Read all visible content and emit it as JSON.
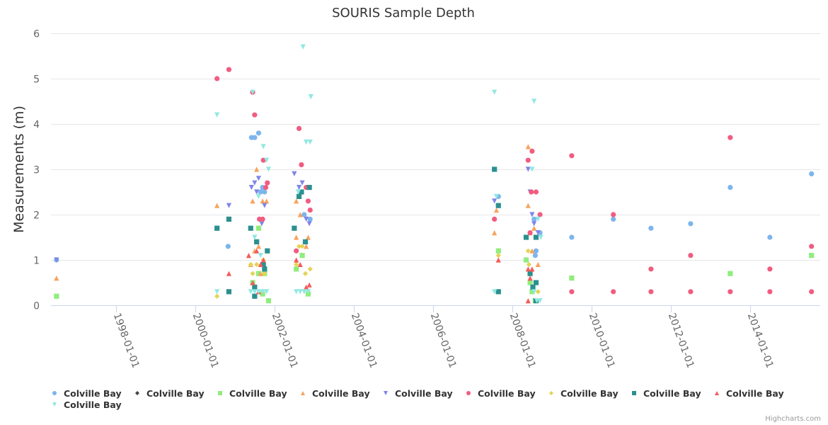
{
  "chart_data": {
    "type": "scatter",
    "title": "SOURIS Sample Depth",
    "xlabel": "",
    "ylabel": "Measurements (m)",
    "x_type": "datetime (decimal year)",
    "xlim": [
      1996.36,
      2015.77
    ],
    "ylim": [
      0,
      6
    ],
    "yticks": [
      0,
      1,
      2,
      3,
      4,
      5,
      6
    ],
    "xticks": [
      {
        "value": 1998,
        "label": "1998-01-01"
      },
      {
        "value": 2000,
        "label": "2000-01-01"
      },
      {
        "value": 2002,
        "label": "2002-01-01"
      },
      {
        "value": 2004,
        "label": "2004-01-01"
      },
      {
        "value": 2006,
        "label": "2006-01-01"
      },
      {
        "value": 2008,
        "label": "2008-01-01"
      },
      {
        "value": 2010,
        "label": "2010-01-01"
      },
      {
        "value": 2012,
        "label": "2012-01-01"
      },
      {
        "value": 2014,
        "label": "2014-01-01"
      }
    ],
    "grid": true,
    "legend_position": "bottom",
    "series": [
      {
        "name": "Colville Bay",
        "color": "#7cb5ec",
        "marker": "circle",
        "points": [
          [
            1996.5,
            1.0
          ],
          [
            2000.83,
            1.3
          ],
          [
            2001.42,
            3.7
          ],
          [
            2001.5,
            3.7
          ],
          [
            2001.6,
            3.8
          ],
          [
            2001.65,
            2.5
          ],
          [
            2001.75,
            2.5
          ],
          [
            2001.7,
            2.6
          ],
          [
            2002.75,
            2.0
          ],
          [
            2002.9,
            1.9
          ],
          [
            2007.65,
            2.4
          ],
          [
            2008.55,
            1.9
          ],
          [
            2008.6,
            1.2
          ],
          [
            2008.58,
            1.1
          ],
          [
            2008.7,
            1.6
          ],
          [
            2009.5,
            1.5
          ],
          [
            2010.55,
            1.9
          ],
          [
            2011.5,
            1.7
          ],
          [
            2012.5,
            1.8
          ],
          [
            2013.5,
            2.6
          ],
          [
            2014.5,
            1.5
          ],
          [
            2015.55,
            2.9
          ]
        ]
      },
      {
        "name": "Colville Bay",
        "color": "#434348",
        "marker": "diamond",
        "points": []
      },
      {
        "name": "Colville Bay",
        "color": "#90ed7d",
        "marker": "square",
        "points": [
          [
            1996.5,
            0.2
          ],
          [
            2001.45,
            0.5
          ],
          [
            2001.6,
            1.7
          ],
          [
            2001.6,
            0.7
          ],
          [
            2001.75,
            0.7
          ],
          [
            2001.7,
            0.25
          ],
          [
            2001.85,
            0.1
          ],
          [
            2002.55,
            0.8
          ],
          [
            2002.7,
            1.1
          ],
          [
            2002.85,
            0.25
          ],
          [
            2007.65,
            1.2
          ],
          [
            2008.35,
            1.0
          ],
          [
            2008.45,
            0.5
          ],
          [
            2008.5,
            0.3
          ],
          [
            2008.58,
            0.1
          ],
          [
            2009.5,
            0.6
          ],
          [
            2013.5,
            0.7
          ],
          [
            2015.55,
            1.1
          ]
        ]
      },
      {
        "name": "Colville Bay",
        "color": "#f7a35c",
        "marker": "triangle",
        "points": [
          [
            1996.5,
            0.6
          ],
          [
            2000.55,
            2.2
          ],
          [
            2001.45,
            2.3
          ],
          [
            2001.55,
            3.0
          ],
          [
            2001.7,
            2.3
          ],
          [
            2001.8,
            2.3
          ],
          [
            2001.5,
            1.2
          ],
          [
            2001.6,
            1.3
          ],
          [
            2001.4,
            0.9
          ],
          [
            2001.65,
            0.7
          ],
          [
            2002.55,
            2.3
          ],
          [
            2002.65,
            2.0
          ],
          [
            2002.55,
            1.5
          ],
          [
            2002.85,
            1.5
          ],
          [
            2002.8,
            1.3
          ],
          [
            2007.55,
            1.6
          ],
          [
            2007.6,
            2.1
          ],
          [
            2008.4,
            3.5
          ],
          [
            2008.4,
            2.2
          ],
          [
            2008.45,
            1.6
          ],
          [
            2008.5,
            1.2
          ],
          [
            2008.55,
            1.7
          ],
          [
            2008.65,
            0.9
          ]
        ]
      },
      {
        "name": "Colville Bay",
        "color": "#8085e9",
        "marker": "triangle-down",
        "points": [
          [
            1996.5,
            1.0
          ],
          [
            2000.85,
            2.2
          ],
          [
            2001.42,
            2.6
          ],
          [
            2001.5,
            2.7
          ],
          [
            2001.55,
            2.5
          ],
          [
            2001.6,
            2.8
          ],
          [
            2001.75,
            2.2
          ],
          [
            2001.68,
            1.8
          ],
          [
            2002.5,
            2.9
          ],
          [
            2002.62,
            2.6
          ],
          [
            2002.7,
            2.7
          ],
          [
            2002.8,
            1.9
          ],
          [
            2002.88,
            1.8
          ],
          [
            2007.55,
            2.3
          ],
          [
            2008.4,
            3.0
          ],
          [
            2008.45,
            2.5
          ],
          [
            2008.5,
            2.0
          ],
          [
            2008.55,
            1.8
          ],
          [
            2008.65,
            1.6
          ]
        ]
      },
      {
        "name": "Colville Bay",
        "color": "#f15c80",
        "marker": "circle",
        "points": [
          [
            2000.55,
            5.0
          ],
          [
            2000.85,
            5.2
          ],
          [
            2001.45,
            4.7
          ],
          [
            2001.5,
            4.2
          ],
          [
            2001.72,
            3.2
          ],
          [
            2001.82,
            2.7
          ],
          [
            2001.78,
            2.6
          ],
          [
            2001.62,
            1.9
          ],
          [
            2001.7,
            1.9
          ],
          [
            2002.62,
            3.9
          ],
          [
            2002.68,
            3.1
          ],
          [
            2002.8,
            2.6
          ],
          [
            2002.85,
            2.3
          ],
          [
            2002.9,
            2.1
          ],
          [
            2002.55,
            1.2
          ],
          [
            2007.55,
            1.9
          ],
          [
            2008.4,
            3.2
          ],
          [
            2008.5,
            3.4
          ],
          [
            2008.6,
            2.5
          ],
          [
            2008.48,
            2.5
          ],
          [
            2008.7,
            2.0
          ],
          [
            2008.45,
            1.6
          ],
          [
            2009.5,
            3.3
          ],
          [
            2009.5,
            0.3
          ],
          [
            2010.55,
            2.0
          ],
          [
            2010.55,
            0.3
          ],
          [
            2011.5,
            0.8
          ],
          [
            2011.5,
            0.3
          ],
          [
            2012.5,
            1.1
          ],
          [
            2012.5,
            0.3
          ],
          [
            2013.5,
            3.7
          ],
          [
            2013.5,
            0.3
          ],
          [
            2014.5,
            0.8
          ],
          [
            2014.5,
            0.3
          ],
          [
            2015.55,
            1.3
          ],
          [
            2015.55,
            0.3
          ]
        ]
      },
      {
        "name": "Colville Bay",
        "color": "#e4d354",
        "marker": "diamond",
        "points": [
          [
            2000.55,
            0.2
          ],
          [
            2001.4,
            0.9
          ],
          [
            2001.45,
            0.7
          ],
          [
            2001.55,
            0.9
          ],
          [
            2001.72,
            1.0
          ],
          [
            2001.75,
            0.7
          ],
          [
            2002.55,
            0.9
          ],
          [
            2002.62,
            1.3
          ],
          [
            2002.7,
            1.3
          ],
          [
            2002.78,
            0.7
          ],
          [
            2002.9,
            0.8
          ],
          [
            2007.65,
            1.1
          ],
          [
            2008.4,
            1.2
          ],
          [
            2008.42,
            0.9
          ],
          [
            2008.65,
            0.3
          ]
        ]
      },
      {
        "name": "Colville Bay",
        "color": "#2b908f",
        "marker": "square",
        "points": [
          [
            2000.55,
            1.7
          ],
          [
            2000.85,
            1.9
          ],
          [
            2000.85,
            0.3
          ],
          [
            2001.4,
            1.7
          ],
          [
            2001.55,
            1.4
          ],
          [
            2001.82,
            1.2
          ],
          [
            2001.75,
            0.8
          ],
          [
            2001.72,
            0.9
          ],
          [
            2001.5,
            0.4
          ],
          [
            2001.5,
            0.2
          ],
          [
            2002.5,
            1.7
          ],
          [
            2002.62,
            2.4
          ],
          [
            2002.68,
            2.5
          ],
          [
            2002.88,
            2.6
          ],
          [
            2002.78,
            1.4
          ],
          [
            2007.55,
            3.0
          ],
          [
            2007.65,
            2.2
          ],
          [
            2007.65,
            0.3
          ],
          [
            2008.35,
            1.5
          ],
          [
            2008.6,
            1.5
          ],
          [
            2008.45,
            0.7
          ],
          [
            2008.52,
            0.4
          ],
          [
            2008.6,
            0.5
          ],
          [
            2008.6,
            0.1
          ]
        ]
      },
      {
        "name": "Colville Bay",
        "color": "#f45b5b",
        "marker": "triangle",
        "points": [
          [
            2000.85,
            0.7
          ],
          [
            2001.35,
            1.1
          ],
          [
            2001.55,
            1.2
          ],
          [
            2001.65,
            0.9
          ],
          [
            2001.72,
            1.0
          ],
          [
            2001.45,
            0.5
          ],
          [
            2001.6,
            0.3
          ],
          [
            2002.55,
            1.0
          ],
          [
            2002.65,
            0.9
          ],
          [
            2002.8,
            0.4
          ],
          [
            2002.88,
            0.45
          ],
          [
            2007.65,
            1.0
          ],
          [
            2008.4,
            0.8
          ],
          [
            2008.45,
            0.6
          ],
          [
            2008.5,
            0.8
          ],
          [
            2008.4,
            0.1
          ]
        ]
      },
      {
        "name": "Colville Bay",
        "color": "#91e8e1",
        "marker": "triangle-down",
        "points": [
          [
            2000.55,
            4.2
          ],
          [
            2000.55,
            0.3
          ],
          [
            2001.45,
            4.7
          ],
          [
            2001.72,
            3.5
          ],
          [
            2001.8,
            3.2
          ],
          [
            2001.85,
            3.0
          ],
          [
            2001.6,
            2.4
          ],
          [
            2001.5,
            1.5
          ],
          [
            2001.65,
            1.1
          ],
          [
            2001.4,
            0.3
          ],
          [
            2001.5,
            0.3
          ],
          [
            2001.6,
            0.3
          ],
          [
            2001.7,
            0.3
          ],
          [
            2001.8,
            0.3
          ],
          [
            2002.72,
            5.7
          ],
          [
            2002.8,
            3.6
          ],
          [
            2002.9,
            3.6
          ],
          [
            2002.92,
            4.6
          ],
          [
            2002.6,
            2.5
          ],
          [
            2002.55,
            0.3
          ],
          [
            2002.65,
            0.3
          ],
          [
            2002.75,
            0.3
          ],
          [
            2002.85,
            0.3
          ],
          [
            2007.55,
            4.7
          ],
          [
            2007.6,
            2.4
          ],
          [
            2007.55,
            0.3
          ],
          [
            2008.55,
            4.5
          ],
          [
            2008.5,
            3.0
          ],
          [
            2008.65,
            1.9
          ],
          [
            2008.72,
            1.5
          ],
          [
            2008.55,
            0.3
          ],
          [
            2008.62,
            0.1
          ],
          [
            2008.7,
            0.1
          ]
        ]
      }
    ]
  },
  "legend": {
    "items": [
      {
        "label": "Colville Bay"
      },
      {
        "label": "Colville Bay"
      },
      {
        "label": "Colville Bay"
      },
      {
        "label": "Colville Bay"
      },
      {
        "label": "Colville Bay"
      },
      {
        "label": "Colville Bay"
      },
      {
        "label": "Colville Bay"
      },
      {
        "label": "Colville Bay"
      },
      {
        "label": "Colville Bay"
      },
      {
        "label": "Colville Bay"
      }
    ]
  },
  "credits": "Highcharts.com"
}
